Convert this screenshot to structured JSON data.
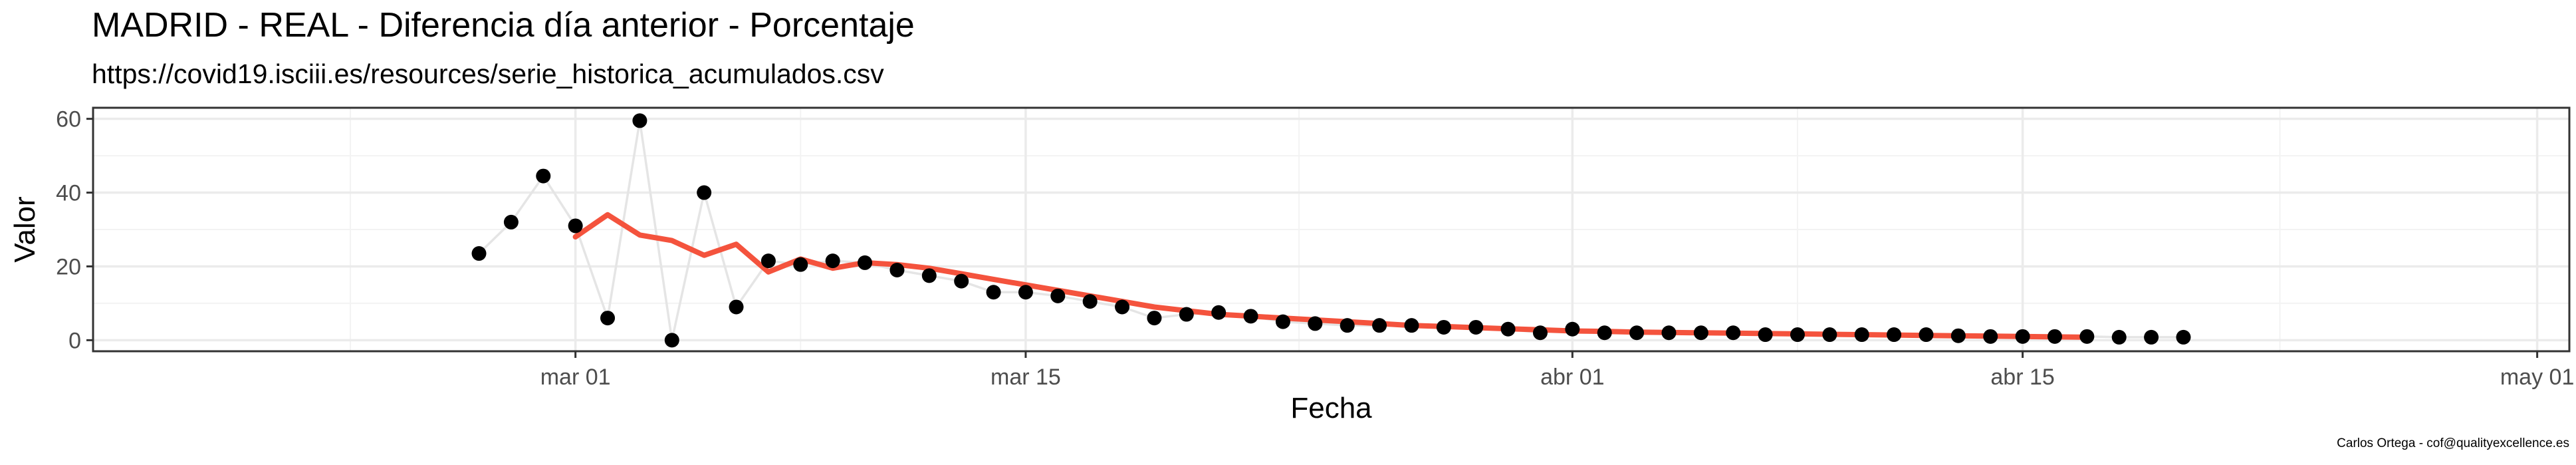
{
  "chart_data": {
    "type": "line",
    "title": "MADRID - REAL - Diferencia día anterior - Porcentaje",
    "subtitle": "https://covid19.isciii.es/resources/serie_historica_acumulados.csv",
    "caption": "Carlos Ortega - cof@qualityexcellence.es",
    "xlabel": "Fecha",
    "ylabel": "Valor",
    "xlim": [
      "2020-02-15",
      "2020-05-02"
    ],
    "ylim": [
      -3,
      63
    ],
    "x_ticks": [
      {
        "date": "2020-03-01",
        "label": "mar 01"
      },
      {
        "date": "2020-03-15",
        "label": "mar 15"
      },
      {
        "date": "2020-04-01",
        "label": "abr 01"
      },
      {
        "date": "2020-04-15",
        "label": "abr 15"
      },
      {
        "date": "2020-05-01",
        "label": "may 01"
      }
    ],
    "y_ticks": [
      0,
      20,
      40,
      60
    ],
    "grid": true,
    "colors": {
      "points": "#000000",
      "raw_line": "#e5e5e5",
      "smooth_line": "#f4533d",
      "grid": "#ebebeb",
      "border": "#333333"
    },
    "series": [
      {
        "style": "points-with-light-line",
        "x": [
          "2020-02-27",
          "2020-02-28",
          "2020-02-29",
          "2020-03-01",
          "2020-03-02",
          "2020-03-03",
          "2020-03-04",
          "2020-03-05",
          "2020-03-06",
          "2020-03-07",
          "2020-03-08",
          "2020-03-09",
          "2020-03-10",
          "2020-03-11",
          "2020-03-12",
          "2020-03-13",
          "2020-03-14",
          "2020-03-15",
          "2020-03-16",
          "2020-03-17",
          "2020-03-18",
          "2020-03-19",
          "2020-03-20",
          "2020-03-21",
          "2020-03-22",
          "2020-03-23",
          "2020-03-24",
          "2020-03-25",
          "2020-03-26",
          "2020-03-27",
          "2020-03-28",
          "2020-03-29",
          "2020-03-30",
          "2020-03-31",
          "2020-04-01",
          "2020-04-02",
          "2020-04-03",
          "2020-04-04",
          "2020-04-05",
          "2020-04-06",
          "2020-04-07",
          "2020-04-08",
          "2020-04-09",
          "2020-04-10",
          "2020-04-11",
          "2020-04-12",
          "2020-04-13",
          "2020-04-14",
          "2020-04-15",
          "2020-04-16",
          "2020-04-17",
          "2020-04-18",
          "2020-04-19",
          "2020-04-20"
        ],
        "values": [
          23.5,
          32,
          44.5,
          31,
          6,
          59.5,
          0,
          40,
          9,
          21.5,
          20.5,
          21.5,
          21,
          19,
          17.5,
          16,
          13,
          13,
          12,
          10.5,
          9,
          6,
          7,
          7.5,
          6.5,
          5,
          4.5,
          4,
          4,
          4,
          3.5,
          3.5,
          3,
          2,
          3,
          2,
          2,
          2,
          2,
          2,
          1.5,
          1.5,
          1.5,
          1.5,
          1.5,
          1.5,
          1.2,
          1,
          1,
          1,
          1,
          0.8,
          0.8,
          0.8
        ]
      },
      {
        "style": "smooth-line",
        "x": [
          "2020-03-01",
          "2020-03-02",
          "2020-03-03",
          "2020-03-04",
          "2020-03-05",
          "2020-03-06",
          "2020-03-07",
          "2020-03-08",
          "2020-03-09",
          "2020-03-10",
          "2020-03-11",
          "2020-03-12",
          "2020-03-13",
          "2020-03-14",
          "2020-03-15",
          "2020-03-16",
          "2020-03-17",
          "2020-03-18",
          "2020-03-19",
          "2020-03-20",
          "2020-03-21",
          "2020-03-22",
          "2020-03-23",
          "2020-03-24",
          "2020-03-25",
          "2020-03-26",
          "2020-03-27",
          "2020-03-28",
          "2020-03-29",
          "2020-03-30",
          "2020-03-31",
          "2020-04-01",
          "2020-04-02",
          "2020-04-03",
          "2020-04-04",
          "2020-04-05",
          "2020-04-06",
          "2020-04-07",
          "2020-04-08",
          "2020-04-09",
          "2020-04-10",
          "2020-04-11",
          "2020-04-12",
          "2020-04-13",
          "2020-04-14",
          "2020-04-15",
          "2020-04-16",
          "2020-04-17"
        ],
        "values": [
          28,
          34,
          28.5,
          27,
          23,
          26,
          18.5,
          22,
          19.5,
          21,
          20.5,
          19.5,
          18,
          16.5,
          15,
          13.5,
          12,
          10.5,
          9,
          8,
          7,
          6.5,
          6,
          5.5,
          5,
          4.5,
          4,
          3.7,
          3.4,
          3.1,
          2.8,
          2.5,
          2.4,
          2.2,
          2.1,
          2.0,
          1.9,
          1.8,
          1.7,
          1.6,
          1.5,
          1.4,
          1.3,
          1.2,
          1.1,
          1.0,
          0.9,
          0.8
        ]
      }
    ]
  }
}
